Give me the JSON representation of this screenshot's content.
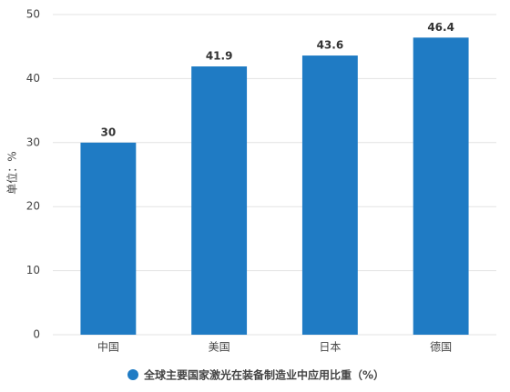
{
  "chart_data": {
    "type": "bar",
    "y_label": "单位：%",
    "categories": [
      "中国",
      "美国",
      "日本",
      "德国"
    ],
    "series": [
      {
        "name": "全球主要国家激光在装备制造业中应用比重（%）",
        "color": "#1f7bc4",
        "values": [
          30,
          41.9,
          43.6,
          46.4
        ]
      }
    ],
    "ylim": [
      0,
      50
    ],
    "yticks": [
      0,
      10,
      20,
      30,
      40,
      50
    ],
    "grid": true,
    "legend": "bottom"
  }
}
